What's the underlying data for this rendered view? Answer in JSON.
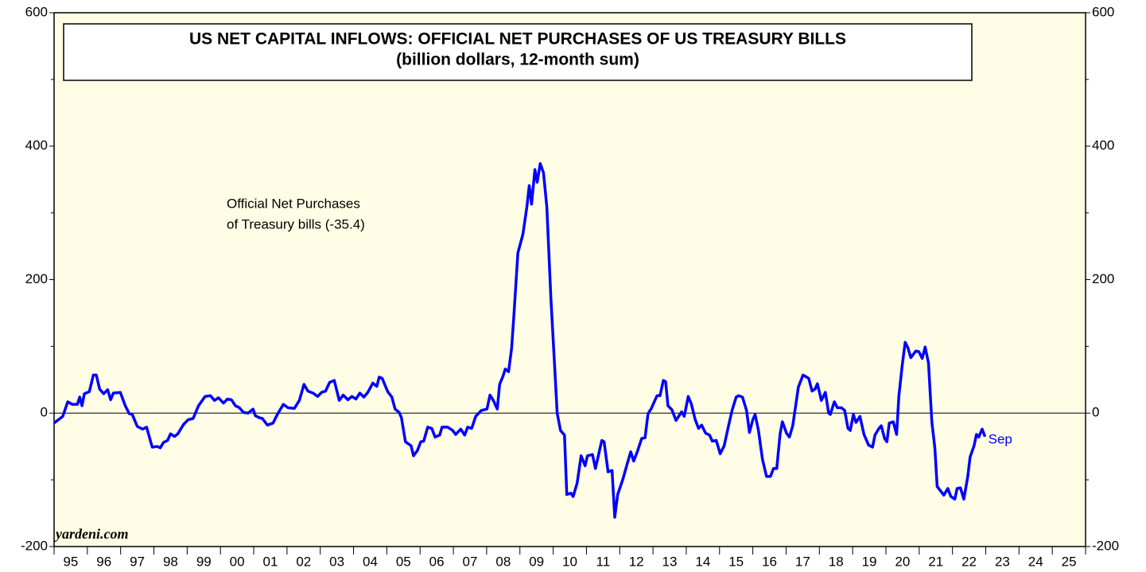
{
  "chart_data": {
    "type": "line",
    "title": "US NET CAPITAL INFLOWS: OFFICIAL NET PURCHASES OF US TREASURY BILLS",
    "subtitle": "(billion dollars, 12-month sum)",
    "annotations": [
      "Official Net Purchases",
      "of Treasury bills  (-35.4)"
    ],
    "source": "yardeni.com",
    "end_label": "Sep",
    "xlim": [
      1995,
      2026
    ],
    "xticks": [
      {
        "value": 1995.5,
        "label": "95"
      },
      {
        "value": 1996.5,
        "label": "96"
      },
      {
        "value": 1997.5,
        "label": "97"
      },
      {
        "value": 1998.5,
        "label": "98"
      },
      {
        "value": 1999.5,
        "label": "99"
      },
      {
        "value": 2000.5,
        "label": "00"
      },
      {
        "value": 2001.5,
        "label": "01"
      },
      {
        "value": 2002.5,
        "label": "02"
      },
      {
        "value": 2003.5,
        "label": "03"
      },
      {
        "value": 2004.5,
        "label": "04"
      },
      {
        "value": 2005.5,
        "label": "05"
      },
      {
        "value": 2006.5,
        "label": "06"
      },
      {
        "value": 2007.5,
        "label": "07"
      },
      {
        "value": 2008.5,
        "label": "08"
      },
      {
        "value": 2009.5,
        "label": "09"
      },
      {
        "value": 2010.5,
        "label": "10"
      },
      {
        "value": 2011.5,
        "label": "11"
      },
      {
        "value": 2012.5,
        "label": "12"
      },
      {
        "value": 2013.5,
        "label": "13"
      },
      {
        "value": 2014.5,
        "label": "14"
      },
      {
        "value": 2015.5,
        "label": "15"
      },
      {
        "value": 2016.5,
        "label": "16"
      },
      {
        "value": 2017.5,
        "label": "17"
      },
      {
        "value": 2018.5,
        "label": "18"
      },
      {
        "value": 2019.5,
        "label": "19"
      },
      {
        "value": 2020.5,
        "label": "20"
      },
      {
        "value": 2021.5,
        "label": "21"
      },
      {
        "value": 2022.5,
        "label": "22"
      },
      {
        "value": 2023.5,
        "label": "23"
      },
      {
        "value": 2024.5,
        "label": "24"
      },
      {
        "value": 2025.5,
        "label": "25"
      }
    ],
    "ylim": [
      -200,
      600
    ],
    "yticks": [
      -200,
      0,
      200,
      400,
      600
    ],
    "zero_line": true,
    "background": "#fffde5",
    "x": [
      1995,
      1995.26,
      1995.41,
      1995.55,
      1995.7,
      1995.77,
      1995.84,
      1995.91,
      1996.06,
      1996.18,
      1996.27,
      1996.37,
      1996.49,
      1996.61,
      1996.7,
      1996.78,
      1996.99,
      1997.14,
      1997.26,
      1997.35,
      1997.5,
      1997.66,
      1997.78,
      1997.95,
      1998.1,
      1998.19,
      1998.29,
      1998.41,
      1998.5,
      1998.62,
      1998.72,
      1998.89,
      1999.03,
      1999.18,
      1999.34,
      1999.54,
      1999.7,
      1999.82,
      1999.94,
      2000.09,
      2000.21,
      2000.33,
      2000.45,
      2000.57,
      2000.69,
      2000.83,
      2000.98,
      2001.05,
      2001.17,
      2001.26,
      2001.41,
      2001.58,
      2001.72,
      2001.89,
      2002.03,
      2002.22,
      2002.37,
      2002.51,
      2002.63,
      2002.78,
      2002.92,
      2003.04,
      2003.16,
      2003.28,
      2003.42,
      2003.57,
      2003.69,
      2003.83,
      2003.95,
      2004.07,
      2004.19,
      2004.31,
      2004.43,
      2004.58,
      2004.7,
      2004.77,
      2004.86,
      2005.03,
      2005.15,
      2005.25,
      2005.37,
      2005.44,
      2005.56,
      2005.73,
      2005.8,
      2005.92,
      2006.02,
      2006.11,
      2006.23,
      2006.35,
      2006.45,
      2006.59,
      2006.66,
      2006.83,
      2006.98,
      2007.07,
      2007.22,
      2007.34,
      2007.43,
      2007.55,
      2007.67,
      2007.84,
      2008.01,
      2008.1,
      2008.2,
      2008.32,
      2008.39,
      2008.49,
      2008.56,
      2008.66,
      2008.75,
      2008.82,
      2008.94,
      2009.09,
      2009.21,
      2009.28,
      2009.35,
      2009.45,
      2009.52,
      2009.61,
      2009.71,
      2009.81,
      2009.93,
      2010.05,
      2010.12,
      2010.22,
      2010.34,
      2010.41,
      2010.53,
      2010.6,
      2010.72,
      2010.84,
      2010.96,
      2011.03,
      2011.18,
      2011.27,
      2011.34,
      2011.46,
      2011.53,
      2011.65,
      2011.77,
      2011.85,
      2011.94,
      2012.09,
      2012.23,
      2012.33,
      2012.42,
      2012.54,
      2012.66,
      2012.76,
      2012.85,
      2012.95,
      2013.12,
      2013.21,
      2013.31,
      2013.38,
      2013.45,
      2013.57,
      2013.69,
      2013.86,
      2013.94,
      2014.06,
      2014.15,
      2014.27,
      2014.37,
      2014.46,
      2014.58,
      2014.7,
      2014.78,
      2014.9,
      2015.02,
      2015.14,
      2015.26,
      2015.38,
      2015.5,
      2015.57,
      2015.69,
      2015.81,
      2015.9,
      2016,
      2016.07,
      2016.17,
      2016.29,
      2016.41,
      2016.53,
      2016.62,
      2016.72,
      2016.82,
      2016.89,
      2017.01,
      2017.1,
      2017.2,
      2017.37,
      2017.51,
      2017.68,
      2017.78,
      2017.87,
      2017.94,
      2018.06,
      2018.18,
      2018.28,
      2018.33,
      2018.45,
      2018.54,
      2018.66,
      2018.76,
      2018.86,
      2018.93,
      2019.02,
      2019.1,
      2019.22,
      2019.34,
      2019.48,
      2019.6,
      2019.67,
      2019.79,
      2019.86,
      2019.96,
      2020.03,
      2020.1,
      2020.22,
      2020.32,
      2020.39,
      2020.49,
      2020.58,
      2020.66,
      2020.75,
      2020.9,
      2020.99,
      2021.09,
      2021.18,
      2021.28,
      2021.38,
      2021.47,
      2021.54,
      2021.74,
      2021.86,
      2021.95,
      2022.07,
      2022.14,
      2022.24,
      2022.34,
      2022.46,
      2022.53,
      2022.65,
      2022.72,
      2022.79,
      2022.89,
      2022.98
    ],
    "series": [
      {
        "color": "#0000ff",
        "values": [
          -15,
          -5,
          17,
          13,
          13,
          24,
          11,
          29,
          32,
          57,
          57,
          36,
          29,
          35,
          20,
          30,
          31,
          11,
          -1,
          -2,
          -20,
          -24,
          -21,
          -51,
          -50,
          -52,
          -44,
          -41,
          -31,
          -35,
          -31,
          -17,
          -10,
          -8,
          11,
          25,
          26,
          19,
          23,
          15,
          21,
          20,
          11,
          8,
          1,
          0,
          6,
          -4,
          -7,
          -8,
          -18,
          -15,
          -1,
          13,
          8,
          7,
          19,
          43,
          33,
          30,
          25,
          31,
          33,
          46,
          49,
          19,
          27,
          20,
          25,
          21,
          30,
          24,
          31,
          45,
          40,
          54,
          52,
          32,
          24,
          6,
          1,
          -7,
          -43,
          -49,
          -64,
          -56,
          -43,
          -42,
          -21,
          -23,
          -36,
          -33,
          -21,
          -21,
          -26,
          -32,
          -24,
          -33,
          -21,
          -23,
          -5,
          4,
          6,
          27,
          19,
          6,
          43,
          55,
          66,
          62,
          97,
          147,
          240,
          268,
          309,
          341,
          313,
          365,
          346,
          374,
          360,
          309,
          172,
          64,
          0,
          -26,
          -33,
          -122,
          -120,
          -125,
          -105,
          -64,
          -79,
          -64,
          -62,
          -83,
          -68,
          -41,
          -43,
          -88,
          -86,
          -156,
          -122,
          -100,
          -75,
          -58,
          -72,
          -56,
          -38,
          -37,
          -1,
          7,
          26,
          26,
          49,
          47,
          11,
          5,
          -11,
          2,
          -5,
          25,
          14,
          -10,
          -23,
          -18,
          -30,
          -33,
          -42,
          -41,
          -61,
          -49,
          -21,
          5,
          24,
          26,
          24,
          4,
          -29,
          -10,
          -2,
          -26,
          -69,
          -95,
          -95,
          -83,
          -83,
          -31,
          -13,
          -30,
          -36,
          -19,
          39,
          57,
          52,
          33,
          36,
          44,
          19,
          31,
          0,
          -2,
          17,
          8,
          8,
          4,
          -23,
          -26,
          -2,
          -14,
          -5,
          -32,
          -48,
          -51,
          -33,
          -23,
          -19,
          -38,
          -43,
          -15,
          -13,
          -32,
          26,
          72,
          106,
          98,
          83,
          93,
          92,
          82,
          99,
          75,
          -13,
          -52,
          -110,
          -123,
          -113,
          -125,
          -129,
          -113,
          -112,
          -129,
          -95,
          -66,
          -49,
          -32,
          -36,
          -24,
          -35.4
        ]
      }
    ]
  }
}
